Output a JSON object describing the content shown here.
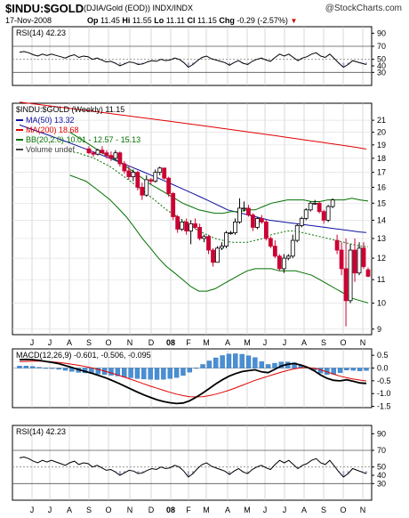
{
  "header": {
    "symbol": "$INDU:$GOLD",
    "description": "(DJIA/Gold (EOD))  INDX/INDX",
    "watermark": "@StockCharts.com",
    "date": "17-Nov-2008",
    "open_label": "Op",
    "open": "11.45",
    "high_label": "Hi",
    "high": "11.55",
    "low_label": "Lo",
    "low": "11.11",
    "close_label": "Cl",
    "close": "11.15",
    "chg_label": "Chg",
    "chg": "-0.29 (-2.57%)",
    "chg_color": "#d00000"
  },
  "x_axis_labels": [
    "J",
    "J",
    "A",
    "S",
    "O",
    "N",
    "D",
    "08",
    "F",
    "M",
    "A",
    "M",
    "J",
    "J",
    "A",
    "S",
    "O",
    "N"
  ],
  "chart_data": [
    {
      "panel": "rsi-top",
      "type": "line",
      "title": "RSI(14) 42.23",
      "ylim": [
        10,
        100
      ],
      "yticks": [
        90,
        70,
        50,
        40,
        30
      ],
      "reference_lines": [
        70,
        50,
        30
      ],
      "series": [
        {
          "name": "RSI(14)",
          "color": "#000000",
          "values": [
            61,
            62,
            60,
            57,
            55,
            58,
            56,
            58,
            56,
            54,
            52,
            55,
            57,
            53,
            55,
            54,
            50,
            52,
            49,
            46,
            47,
            44,
            40,
            43,
            46,
            45,
            42,
            43,
            46,
            48,
            47,
            50,
            48,
            49,
            52,
            50,
            45,
            38,
            42,
            48,
            53,
            55,
            51,
            49,
            47,
            45,
            41,
            45,
            48,
            44,
            42,
            47,
            50,
            52,
            49,
            47,
            53,
            58,
            55,
            58,
            53,
            48,
            52,
            54,
            58,
            60,
            55,
            53,
            58,
            51,
            44,
            38,
            42,
            48,
            46,
            44,
            42
          ]
        }
      ]
    },
    {
      "panel": "price",
      "type": "candlestick",
      "title": "$INDU:$GOLD (Weekly) 11.15",
      "yscale": "log",
      "ylim": [
        8.8,
        22.5
      ],
      "yticks": [
        21,
        20,
        19,
        18,
        17,
        16,
        15,
        14,
        13,
        12,
        11,
        10,
        9
      ],
      "legend": [
        {
          "label": "MA(50) 13.32",
          "color": "#1010a0"
        },
        {
          "label": "MA(200) 18.68",
          "color": "#e00000"
        },
        {
          "label": "BB(20,2.0) 10.01 - 12.57 - 15.13",
          "color": "#007000"
        },
        {
          "label": "Volume undef",
          "color": "#444444"
        }
      ],
      "candles": [
        {
          "o": 18.7,
          "h": 18.9,
          "l": 18.3,
          "c": 18.4
        },
        {
          "o": 18.4,
          "h": 18.5,
          "l": 18.1,
          "c": 18.3
        },
        {
          "o": 18.3,
          "h": 18.7,
          "l": 18.2,
          "c": 18.6
        },
        {
          "o": 18.6,
          "h": 18.9,
          "l": 18.3,
          "c": 18.4
        },
        {
          "o": 18.4,
          "h": 18.6,
          "l": 18.0,
          "c": 18.2
        },
        {
          "o": 18.2,
          "h": 18.5,
          "l": 17.8,
          "c": 18.0
        },
        {
          "o": 18.0,
          "h": 18.6,
          "l": 17.9,
          "c": 18.4
        },
        {
          "o": 18.4,
          "h": 18.5,
          "l": 17.4,
          "c": 17.6
        },
        {
          "o": 17.6,
          "h": 17.8,
          "l": 16.9,
          "c": 17.1
        },
        {
          "o": 17.1,
          "h": 17.4,
          "l": 16.5,
          "c": 16.7
        },
        {
          "o": 16.7,
          "h": 17.2,
          "l": 16.4,
          "c": 17.0
        },
        {
          "o": 17.0,
          "h": 17.1,
          "l": 15.8,
          "c": 16.0
        },
        {
          "o": 16.0,
          "h": 16.3,
          "l": 15.2,
          "c": 15.5
        },
        {
          "o": 15.5,
          "h": 16.8,
          "l": 15.4,
          "c": 16.5
        },
        {
          "o": 16.5,
          "h": 16.6,
          "l": 16.2,
          "c": 16.4
        },
        {
          "o": 16.4,
          "h": 17.2,
          "l": 16.3,
          "c": 17.0
        },
        {
          "o": 17.0,
          "h": 17.4,
          "l": 16.8,
          "c": 17.3
        },
        {
          "o": 17.3,
          "h": 17.3,
          "l": 16.5,
          "c": 16.6
        },
        {
          "o": 16.6,
          "h": 16.7,
          "l": 15.4,
          "c": 15.6
        },
        {
          "o": 15.6,
          "h": 15.7,
          "l": 14.0,
          "c": 14.2
        },
        {
          "o": 14.2,
          "h": 14.3,
          "l": 13.3,
          "c": 13.5
        },
        {
          "o": 13.5,
          "h": 14.0,
          "l": 13.4,
          "c": 13.9
        },
        {
          "o": 13.9,
          "h": 14.1,
          "l": 13.2,
          "c": 13.4
        },
        {
          "o": 13.4,
          "h": 14.0,
          "l": 12.7,
          "c": 13.8
        },
        {
          "o": 13.8,
          "h": 14.1,
          "l": 13.5,
          "c": 13.6
        },
        {
          "o": 13.6,
          "h": 13.8,
          "l": 12.9,
          "c": 13.0
        },
        {
          "o": 13.0,
          "h": 13.2,
          "l": 12.8,
          "c": 13.1
        },
        {
          "o": 13.1,
          "h": 13.2,
          "l": 12.2,
          "c": 12.4
        },
        {
          "o": 12.4,
          "h": 12.5,
          "l": 11.6,
          "c": 11.8
        },
        {
          "o": 11.8,
          "h": 12.6,
          "l": 11.8,
          "c": 12.5
        },
        {
          "o": 12.5,
          "h": 12.8,
          "l": 12.4,
          "c": 12.6
        },
        {
          "o": 12.6,
          "h": 13.4,
          "l": 12.5,
          "c": 13.3
        },
        {
          "o": 13.3,
          "h": 13.4,
          "l": 13.2,
          "c": 13.3
        },
        {
          "o": 13.3,
          "h": 14.1,
          "l": 13.2,
          "c": 13.9
        },
        {
          "o": 13.9,
          "h": 15.3,
          "l": 13.8,
          "c": 14.7
        },
        {
          "o": 14.7,
          "h": 15.1,
          "l": 14.5,
          "c": 14.7
        },
        {
          "o": 14.7,
          "h": 14.9,
          "l": 14.2,
          "c": 14.3
        },
        {
          "o": 14.3,
          "h": 14.4,
          "l": 13.4,
          "c": 13.6
        },
        {
          "o": 13.6,
          "h": 14.2,
          "l": 13.5,
          "c": 14.1
        },
        {
          "o": 14.1,
          "h": 14.3,
          "l": 13.8,
          "c": 13.9
        },
        {
          "o": 13.9,
          "h": 14.0,
          "l": 12.9,
          "c": 13.0
        },
        {
          "o": 13.0,
          "h": 13.1,
          "l": 12.5,
          "c": 12.6
        },
        {
          "o": 12.6,
          "h": 12.9,
          "l": 12.0,
          "c": 12.1
        },
        {
          "o": 12.1,
          "h": 12.2,
          "l": 11.4,
          "c": 11.5
        },
        {
          "o": 11.5,
          "h": 12.2,
          "l": 11.3,
          "c": 12.0
        },
        {
          "o": 12.0,
          "h": 12.2,
          "l": 11.9,
          "c": 12.1
        },
        {
          "o": 12.1,
          "h": 13.2,
          "l": 12.0,
          "c": 12.9
        },
        {
          "o": 12.9,
          "h": 13.8,
          "l": 12.8,
          "c": 13.7
        },
        {
          "o": 13.7,
          "h": 14.2,
          "l": 13.6,
          "c": 14.1
        },
        {
          "o": 14.1,
          "h": 14.7,
          "l": 14.0,
          "c": 14.6
        },
        {
          "o": 14.6,
          "h": 15.1,
          "l": 14.5,
          "c": 15.0
        },
        {
          "o": 15.0,
          "h": 15.2,
          "l": 14.9,
          "c": 15.0
        },
        {
          "o": 15.0,
          "h": 15.1,
          "l": 14.4,
          "c": 14.5
        },
        {
          "o": 14.5,
          "h": 14.6,
          "l": 13.8,
          "c": 14.0
        },
        {
          "o": 14.0,
          "h": 14.9,
          "l": 13.9,
          "c": 14.8
        },
        {
          "o": 14.8,
          "h": 15.3,
          "l": 14.7,
          "c": 15.2
        },
        {
          "o": 12.9,
          "h": 13.2,
          "l": 12.2,
          "c": 12.4
        },
        {
          "o": 12.4,
          "h": 12.8,
          "l": 11.2,
          "c": 11.5
        },
        {
          "o": 11.5,
          "h": 13.0,
          "l": 9.1,
          "c": 10.1
        },
        {
          "o": 10.1,
          "h": 12.7,
          "l": 10.0,
          "c": 12.4
        },
        {
          "o": 12.4,
          "h": 13.0,
          "l": 10.9,
          "c": 11.3
        },
        {
          "o": 11.3,
          "h": 12.8,
          "l": 11.2,
          "c": 12.5
        },
        {
          "o": 12.5,
          "h": 12.8,
          "l": 11.5,
          "c": 11.6
        },
        {
          "o": 11.45,
          "h": 11.55,
          "l": 11.11,
          "c": 11.15
        }
      ],
      "ma50": [
        20.6,
        20.4,
        20.2,
        20.0,
        19.8,
        19.6,
        19.4,
        19.2,
        19.0,
        18.8,
        18.6,
        18.4,
        18.2,
        18.0,
        17.8,
        17.6,
        17.4,
        17.2,
        17.0,
        16.8,
        16.6,
        16.4,
        16.2,
        16.0,
        15.8,
        15.6,
        15.4,
        15.2,
        15.0,
        14.8,
        14.6,
        14.5,
        14.4,
        14.3,
        14.2,
        14.1,
        14.0,
        13.95,
        13.9,
        13.85,
        13.8,
        13.75,
        13.7,
        13.65,
        13.6,
        13.55,
        13.5,
        13.45,
        13.4,
        13.35,
        13.32
      ],
      "ma200": [
        22.6,
        22.5,
        22.4,
        22.3,
        22.2,
        22.1,
        22.0,
        21.9,
        21.8,
        21.7,
        21.6,
        21.5,
        21.4,
        21.3,
        21.2,
        21.1,
        21.0,
        20.9,
        20.8,
        20.7,
        20.6,
        20.5,
        20.4,
        20.3,
        20.2,
        20.1,
        20.0,
        19.9,
        19.8,
        19.7,
        19.6,
        19.5,
        19.4,
        19.3,
        19.2,
        19.1,
        19.0,
        18.9,
        18.8,
        18.68
      ],
      "bb_upper": [
        20.0,
        19.6,
        19.2,
        18.8,
        18.4,
        18.1,
        17.8,
        17.4,
        17.0,
        16.6,
        16.2,
        15.9,
        15.6,
        15.3,
        15.0,
        14.8,
        14.6,
        14.5,
        14.4,
        14.4,
        14.5,
        14.5,
        14.6,
        14.6,
        14.8,
        15.0,
        15.1,
        15.2,
        15.2,
        15.2,
        15.1,
        15.1,
        15.2,
        15.2,
        15.2,
        15.3,
        15.2,
        15.13
      ],
      "bb_mid": [
        18.5,
        18.4,
        18.2,
        18.0,
        17.7,
        17.4,
        17.0,
        16.6,
        16.2,
        15.8,
        15.4,
        15.0,
        14.6,
        14.3,
        14.0,
        13.7,
        13.4,
        13.2,
        13.0,
        12.9,
        12.8,
        12.8,
        12.8,
        12.9,
        13.0,
        13.2,
        13.3,
        13.4,
        13.4,
        13.3,
        13.2,
        13.1,
        13.0,
        12.9,
        12.8,
        12.7,
        12.6,
        12.57
      ],
      "bb_lower": [
        16.8,
        16.6,
        16.4,
        16.0,
        15.6,
        15.2,
        14.7,
        14.2,
        13.6,
        13.0,
        12.5,
        12.0,
        11.6,
        11.3,
        11.0,
        10.7,
        10.5,
        10.5,
        10.6,
        10.8,
        11.0,
        11.2,
        11.4,
        11.5,
        11.5,
        11.5,
        11.4,
        11.4,
        11.4,
        11.3,
        11.2,
        11.0,
        10.8,
        10.6,
        10.4,
        10.2,
        10.1,
        10.01
      ]
    },
    {
      "panel": "macd",
      "type": "line+histogram",
      "title": "MACD(12,26,9) -0.601, -0.506, -0.095",
      "ylim": [
        -1.55,
        0.75
      ],
      "yticks": [
        0.5,
        0.0,
        -0.5,
        -1.0,
        -1.5
      ],
      "series": [
        {
          "name": "MACD(12,26,9)",
          "color": "#000000",
          "values": [
            0.33,
            0.34,
            0.33,
            0.3,
            0.26,
            0.22,
            0.17,
            0.1,
            0.02,
            -0.06,
            -0.13,
            -0.2,
            -0.28,
            -0.37,
            -0.47,
            -0.58,
            -0.7,
            -0.82,
            -0.94,
            -1.05,
            -1.15,
            -1.24,
            -1.31,
            -1.36,
            -1.39,
            -1.37,
            -1.28,
            -1.14,
            -0.98,
            -0.8,
            -0.62,
            -0.46,
            -0.32,
            -0.22,
            -0.14,
            -0.1,
            -0.07,
            -0.15,
            -0.18,
            -0.05,
            0.08,
            0.15,
            0.18,
            0.12,
            0.03,
            -0.1,
            -0.27,
            -0.4,
            -0.48,
            -0.5,
            -0.46,
            -0.52,
            -0.58,
            -0.601
          ]
        },
        {
          "name": "Signal",
          "color": "#e00000",
          "values": [
            0.25,
            0.26,
            0.27,
            0.27,
            0.26,
            0.24,
            0.22,
            0.19,
            0.15,
            0.11,
            0.06,
            0.01,
            -0.05,
            -0.12,
            -0.19,
            -0.27,
            -0.35,
            -0.44,
            -0.53,
            -0.62,
            -0.71,
            -0.79,
            -0.87,
            -0.95,
            -1.02,
            -1.08,
            -1.12,
            -1.13,
            -1.12,
            -1.08,
            -1.02,
            -0.95,
            -0.87,
            -0.78,
            -0.68,
            -0.58,
            -0.48,
            -0.4,
            -0.32,
            -0.24,
            -0.16,
            -0.09,
            -0.03,
            0.01,
            0.02,
            -0.01,
            -0.07,
            -0.15,
            -0.24,
            -0.32,
            -0.38,
            -0.43,
            -0.47,
            -0.506
          ]
        }
      ]
    },
    {
      "panel": "rsi-bottom",
      "type": "line",
      "title": "RSI(14) 42.23",
      "ylim": [
        10,
        100
      ],
      "yticks": [
        90,
        70,
        50,
        40,
        30
      ],
      "reference_lines": [
        70,
        50,
        30
      ],
      "series": [
        {
          "name": "RSI(14)",
          "color": "#000000",
          "values": [
            61,
            62,
            60,
            57,
            55,
            58,
            56,
            58,
            56,
            54,
            52,
            55,
            57,
            53,
            55,
            54,
            50,
            52,
            49,
            46,
            47,
            44,
            40,
            43,
            46,
            45,
            42,
            43,
            46,
            48,
            47,
            50,
            48,
            49,
            52,
            50,
            45,
            38,
            42,
            48,
            53,
            55,
            51,
            49,
            47,
            45,
            41,
            45,
            48,
            44,
            42,
            47,
            50,
            52,
            49,
            47,
            53,
            58,
            55,
            58,
            53,
            48,
            52,
            54,
            58,
            60,
            55,
            53,
            58,
            51,
            44,
            38,
            42,
            48,
            46,
            44,
            42
          ]
        }
      ]
    }
  ]
}
